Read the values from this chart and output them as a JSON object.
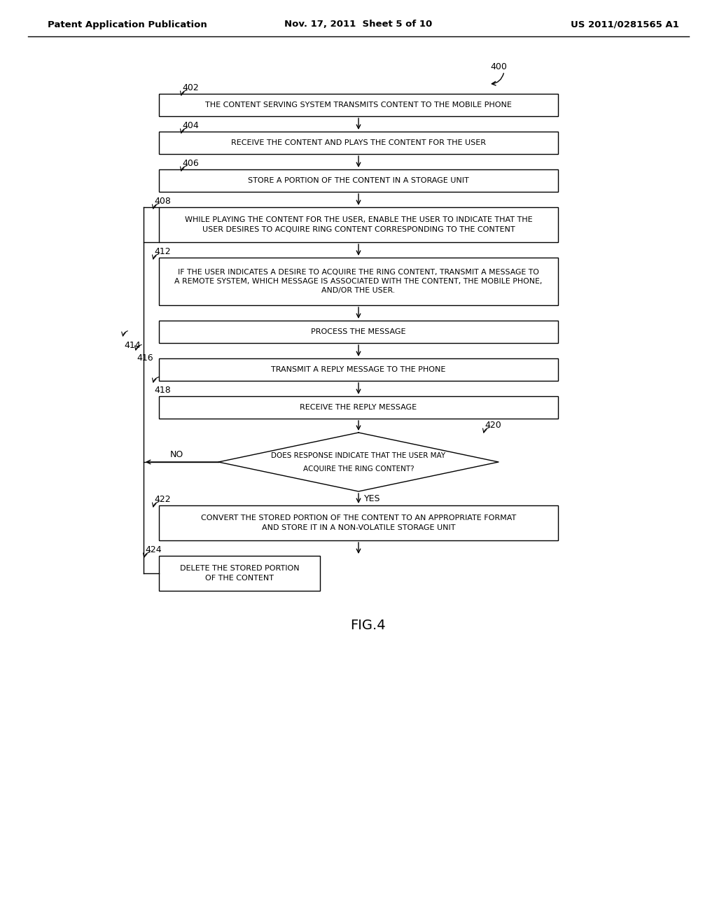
{
  "title_left": "Patent Application Publication",
  "title_mid": "Nov. 17, 2011  Sheet 5 of 10",
  "title_right": "US 2011/0281565 A1",
  "fig_label": "FIG.4",
  "boxes": [
    {
      "id": "402",
      "label": "THE CONTENT SERVING SYSTEM TRANSMITS CONTENT TO THE MOBILE PHONE",
      "lines": 1
    },
    {
      "id": "404",
      "label": "RECEIVE THE CONTENT AND PLAYS THE CONTENT FOR THE USER",
      "lines": 1
    },
    {
      "id": "406",
      "label": "STORE A PORTION OF THE CONTENT IN A STORAGE UNIT",
      "lines": 1
    },
    {
      "id": "408",
      "label": "WHILE PLAYING THE CONTENT FOR THE USER, ENABLE THE USER TO INDICATE THAT THE\nUSER DESIRES TO ACQUIRE RING CONTENT CORRESPONDING TO THE CONTENT",
      "lines": 2
    },
    {
      "id": "412",
      "label": "IF THE USER INDICATES A DESIRE TO ACQUIRE THE RING CONTENT, TRANSMIT A MESSAGE TO\nA REMOTE SYSTEM, WHICH MESSAGE IS ASSOCIATED WITH THE CONTENT, THE MOBILE PHONE,\nAND/OR THE USER.",
      "lines": 3
    },
    {
      "id": "proc",
      "label": "PROCESS THE MESSAGE",
      "lines": 1
    },
    {
      "id": "416",
      "label": "TRANSMIT A REPLY MESSAGE TO THE PHONE",
      "lines": 1
    },
    {
      "id": "418",
      "label": "RECEIVE THE REPLY MESSAGE",
      "lines": 1
    },
    {
      "id": "422",
      "label": "CONVERT THE STORED PORTION OF THE CONTENT TO AN APPROPRIATE FORMAT\nAND STORE IT IN A NON-VOLATILE STORAGE UNIT",
      "lines": 2
    },
    {
      "id": "424",
      "label": "DELETE THE STORED PORTION\nOF THE CONTENT",
      "lines": 2
    }
  ],
  "diamond_id": "420",
  "diamond_label_line1": "DOES RESPONSE INDICATE THAT THE USER MAY",
  "diamond_label_line2": "ACQUIRE THE RING CONTENT?",
  "yes_label": "YES",
  "no_label": "NO",
  "label_414": "414",
  "label_416": "416",
  "label_400": "400",
  "background": "#ffffff",
  "box_color": "#ffffff",
  "box_edge": "#000000",
  "text_color": "#000000"
}
